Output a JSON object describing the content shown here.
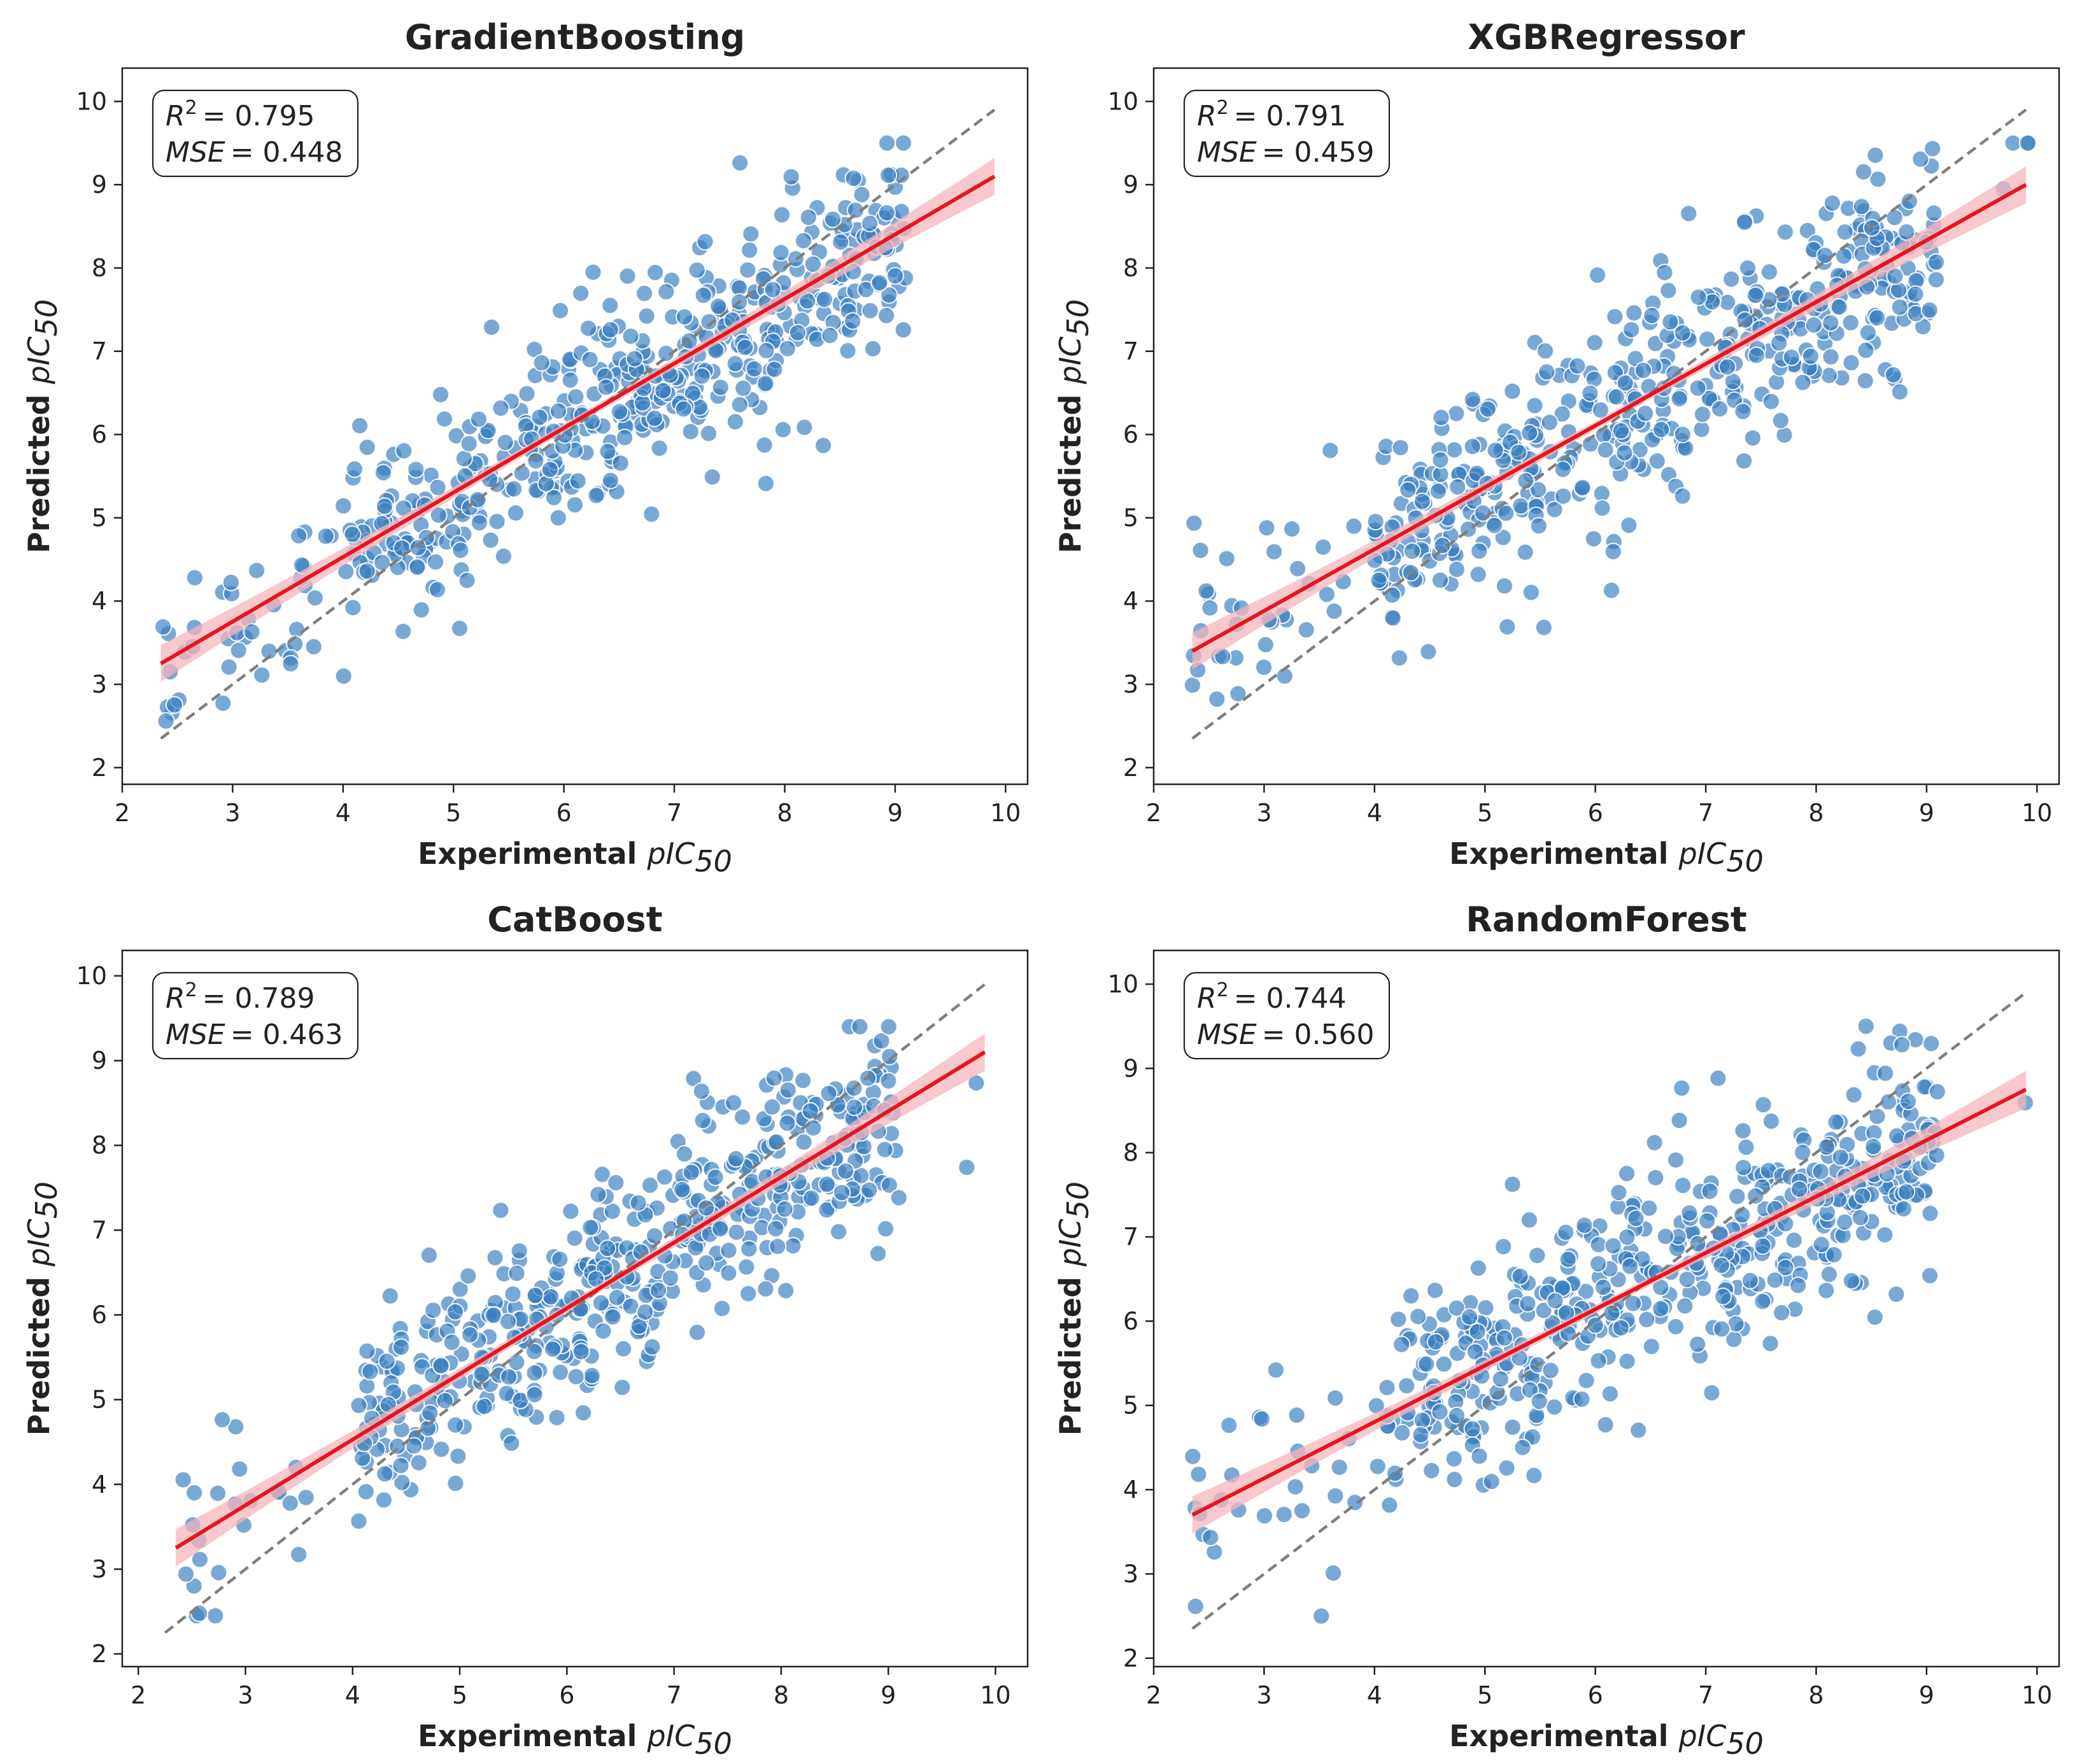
{
  "chart_data": [
    {
      "type": "scatter",
      "title": "GradientBoosting",
      "xlabel": "Experimental",
      "ylabel": "Predicted",
      "var_name": "pIC",
      "var_sub": "50",
      "xlim": [
        2.0,
        10.2
      ],
      "ylim": [
        1.8,
        10.4
      ],
      "xticks": [
        "2",
        "3",
        "4",
        "5",
        "6",
        "7",
        "8",
        "9",
        "10"
      ],
      "yticks": [
        "2",
        "3",
        "4",
        "5",
        "6",
        "7",
        "8",
        "9",
        "10"
      ],
      "r2_label": "R",
      "r2_sup": "2",
      "r2_value": "= 0.795",
      "mse_label": "MSE",
      "mse_value": "= 0.448",
      "r2": 0.795,
      "mse": 0.448,
      "fit_line": {
        "x": [
          2.35,
          9.9
        ],
        "y": [
          3.25,
          9.1
        ]
      },
      "identity_line": {
        "x": [
          2.35,
          9.9
        ],
        "y": [
          2.35,
          9.9
        ]
      },
      "series": [
        {
          "name": "predictions",
          "color": "#3a7fbf",
          "n_points": 520,
          "seed": 11,
          "noise_sd": 0.62,
          "slope": 0.775,
          "intercept": 1.43
        }
      ],
      "colors": {
        "points": "#3a7fbf",
        "fit": "#e8141e",
        "band": "#f4b6bb",
        "identity": "#7f7f7f"
      }
    },
    {
      "type": "scatter",
      "title": "XGBRegressor",
      "xlabel": "Experimental",
      "ylabel": "Predicted",
      "var_name": "pIC",
      "var_sub": "50",
      "xlim": [
        2.0,
        10.2
      ],
      "ylim": [
        1.8,
        10.4
      ],
      "xticks": [
        "2",
        "3",
        "4",
        "5",
        "6",
        "7",
        "8",
        "9",
        "10"
      ],
      "yticks": [
        "2",
        "3",
        "4",
        "5",
        "6",
        "7",
        "8",
        "9",
        "10"
      ],
      "r2_label": "R",
      "r2_sup": "2",
      "r2_value": "= 0.791",
      "mse_label": "MSE",
      "mse_value": "= 0.459",
      "r2": 0.791,
      "mse": 0.459,
      "fit_line": {
        "x": [
          2.35,
          9.9
        ],
        "y": [
          3.4,
          9.0
        ]
      },
      "identity_line": {
        "x": [
          2.35,
          9.9
        ],
        "y": [
          2.35,
          9.9
        ]
      },
      "series": [
        {
          "name": "predictions",
          "color": "#3a7fbf",
          "n_points": 520,
          "seed": 23,
          "noise_sd": 0.63,
          "slope": 0.742,
          "intercept": 1.66
        }
      ],
      "colors": {
        "points": "#3a7fbf",
        "fit": "#e8141e",
        "band": "#f4b6bb",
        "identity": "#7f7f7f"
      }
    },
    {
      "type": "scatter",
      "title": "CatBoost",
      "xlabel": "Experimental",
      "ylabel": "Predicted",
      "var_name": "pIC",
      "var_sub": "50",
      "xlim": [
        1.85,
        10.3
      ],
      "ylim": [
        1.85,
        10.3
      ],
      "xticks": [
        "2",
        "3",
        "4",
        "5",
        "6",
        "7",
        "8",
        "9",
        "10"
      ],
      "yticks": [
        "2",
        "3",
        "4",
        "5",
        "6",
        "7",
        "8",
        "9",
        "10"
      ],
      "r2_label": "R",
      "r2_sup": "2",
      "r2_value": "= 0.789",
      "mse_label": "MSE",
      "mse_value": "= 0.463",
      "r2": 0.789,
      "mse": 0.463,
      "fit_line": {
        "x": [
          2.35,
          9.9
        ],
        "y": [
          3.25,
          9.1
        ]
      },
      "identity_line": {
        "x": [
          2.25,
          9.9
        ],
        "y": [
          2.25,
          9.9
        ]
      },
      "series": [
        {
          "name": "predictions",
          "color": "#3a7fbf",
          "n_points": 520,
          "seed": 37,
          "noise_sd": 0.64,
          "slope": 0.775,
          "intercept": 1.43
        }
      ],
      "colors": {
        "points": "#3a7fbf",
        "fit": "#e8141e",
        "band": "#f4b6bb",
        "identity": "#7f7f7f"
      }
    },
    {
      "type": "scatter",
      "title": "RandomForest",
      "xlabel": "Experimental",
      "ylabel": "Predicted",
      "var_name": "pIC",
      "var_sub": "50",
      "xlim": [
        2.0,
        10.2
      ],
      "ylim": [
        1.9,
        10.4
      ],
      "xticks": [
        "2",
        "3",
        "4",
        "5",
        "6",
        "7",
        "8",
        "9",
        "10"
      ],
      "yticks": [
        "2",
        "3",
        "4",
        "5",
        "6",
        "7",
        "8",
        "9",
        "10"
      ],
      "r2_label": "R",
      "r2_sup": "2",
      "r2_value": "= 0.744",
      "mse_label": "MSE",
      "mse_value": "= 0.560",
      "r2": 0.744,
      "mse": 0.56,
      "fit_line": {
        "x": [
          2.35,
          9.9
        ],
        "y": [
          3.7,
          8.75
        ]
      },
      "identity_line": {
        "x": [
          2.35,
          9.9
        ],
        "y": [
          2.35,
          9.9
        ]
      },
      "series": [
        {
          "name": "predictions",
          "color": "#3a7fbf",
          "n_points": 520,
          "seed": 53,
          "noise_sd": 0.68,
          "slope": 0.669,
          "intercept": 2.13
        }
      ],
      "colors": {
        "points": "#3a7fbf",
        "fit": "#e8141e",
        "band": "#f4b6bb",
        "identity": "#7f7f7f"
      }
    }
  ]
}
